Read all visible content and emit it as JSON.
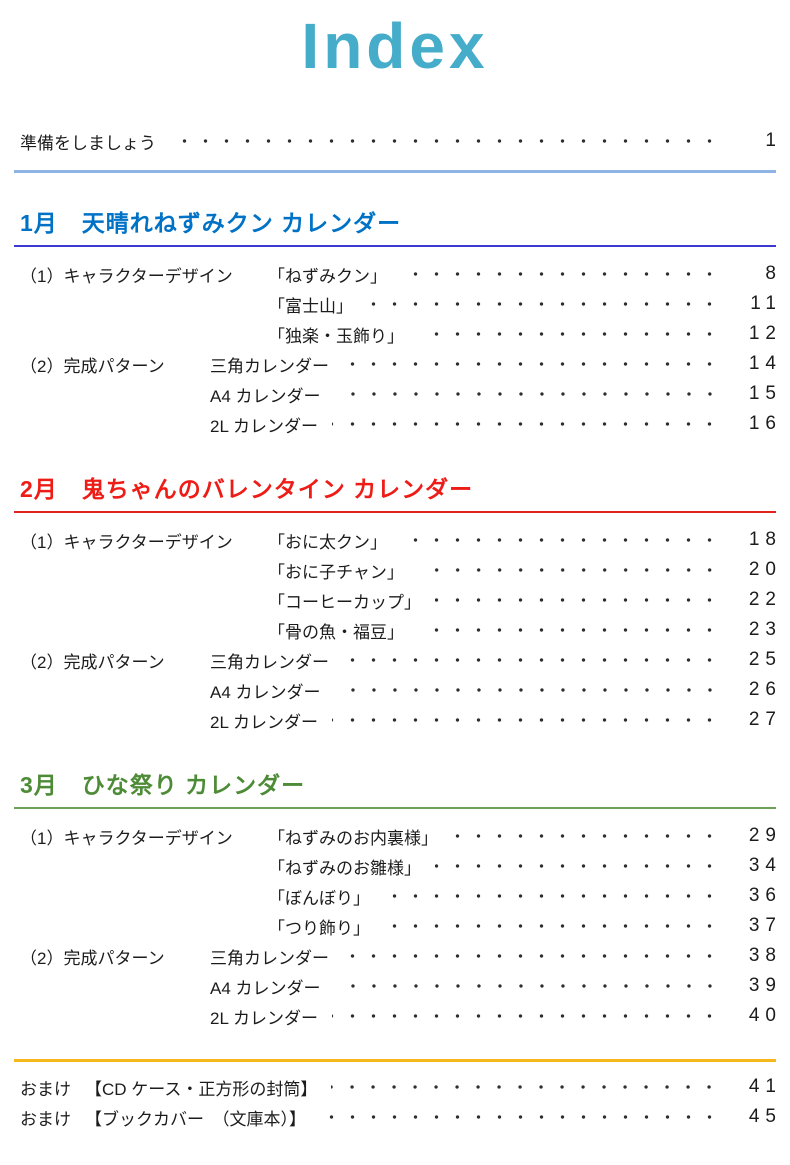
{
  "page": {
    "title": "Index",
    "title_color": "#45ACCA"
  },
  "intro": {
    "label": "準備をしましょう",
    "page": "1",
    "rule_color": "#8EB4E3"
  },
  "sections": [
    {
      "heading": "1月　天晴れねずみクン カレンダー",
      "heading_color": "#0072C6",
      "rule_color": "#3C38D2",
      "groups": [
        {
          "category": "（1）キャラクターデザイン",
          "items": [
            {
              "label": "「ねずみクン」",
              "page": "8"
            },
            {
              "label": "「富士山」",
              "page": "11"
            },
            {
              "label": "「独楽・玉飾り」",
              "page": "12"
            }
          ]
        },
        {
          "category": "（2）完成パターン",
          "items": [
            {
              "label": "三角カレンダー",
              "page": "14"
            },
            {
              "label": "A4 カレンダー",
              "page": "15"
            },
            {
              "label": "2L カレンダー",
              "page": "16"
            }
          ]
        }
      ]
    },
    {
      "heading": "2月　鬼ちゃんのバレンタイン カレンダー",
      "heading_color": "#EE1C16",
      "rule_color": "#E0231C",
      "groups": [
        {
          "category": "（1）キャラクターデザイン",
          "items": [
            {
              "label": "「おに太クン」",
              "page": "18"
            },
            {
              "label": "「おに子チャン」",
              "page": "20"
            },
            {
              "label": "「コーヒーカップ」",
              "page": "22"
            },
            {
              "label": "「骨の魚・福豆」",
              "page": "23"
            }
          ]
        },
        {
          "category": "（2）完成パターン",
          "items": [
            {
              "label": "三角カレンダー",
              "page": "25"
            },
            {
              "label": "A4 カレンダー",
              "page": "26"
            },
            {
              "label": "2L カレンダー",
              "page": "27"
            }
          ]
        }
      ]
    },
    {
      "heading": "3月　ひな祭り カレンダー",
      "heading_color": "#4D8B36",
      "rule_color": "#6FA058",
      "groups": [
        {
          "category": "（1）キャラクターデザイン",
          "items": [
            {
              "label": "「ねずみのお内裏様」",
              "page": "29"
            },
            {
              "label": "「ねずみのお雛様」",
              "page": "34"
            },
            {
              "label": "「ぼんぼり」",
              "page": "36"
            },
            {
              "label": "「つり飾り」",
              "page": "37"
            }
          ]
        },
        {
          "category": "（2）完成パターン",
          "items": [
            {
              "label": "三角カレンダー",
              "page": "38"
            },
            {
              "label": "A4 カレンダー",
              "page": "39"
            },
            {
              "label": "2L カレンダー",
              "page": "40"
            }
          ]
        }
      ]
    }
  ],
  "extras": {
    "rule_color": "#F5B71A",
    "items": [
      {
        "label": "おまけ",
        "title": "【CD ケース・正方形の封筒】",
        "page": "41"
      },
      {
        "label": "おまけ",
        "title": "【ブックカバー　（文庫本）】",
        "page": "45"
      }
    ]
  }
}
